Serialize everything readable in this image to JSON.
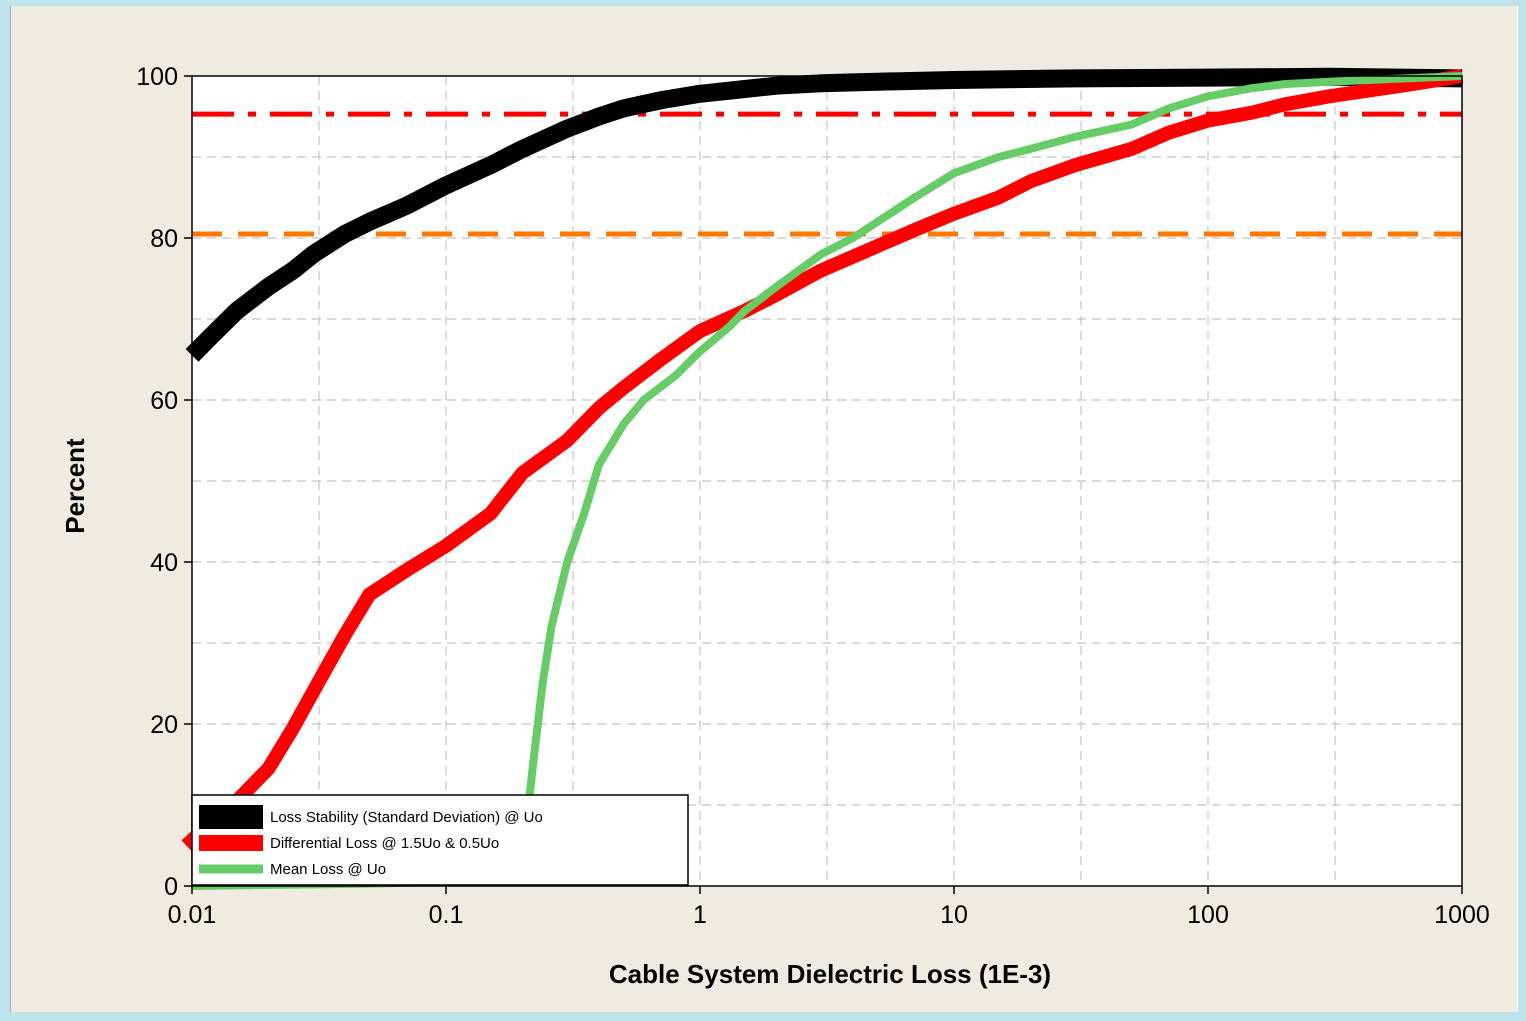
{
  "chart_data": {
    "type": "line",
    "title": "",
    "xlabel": "Cable System Dielectric Loss (1E-3)",
    "ylabel": "Percent",
    "xscale": "log",
    "xlim": [
      0.01,
      1000
    ],
    "ylim": [
      0,
      100
    ],
    "x_ticks": [
      0.01,
      0.1,
      1,
      10,
      100,
      1000
    ],
    "x_tick_labels": [
      "0.01",
      "0.1",
      "1",
      "10",
      "100",
      "1000"
    ],
    "y_ticks": [
      0,
      20,
      40,
      60,
      80,
      100
    ],
    "y_tick_labels": [
      "0",
      "20",
      "40",
      "60",
      "80",
      "100"
    ],
    "grid": true,
    "legend_position": "bottom-left",
    "series": [
      {
        "name": "Loss Stability (Standard Deviation) @ Uo",
        "color": "#000000",
        "x": [
          0.01,
          0.012,
          0.015,
          0.02,
          0.025,
          0.03,
          0.04,
          0.05,
          0.07,
          0.1,
          0.15,
          0.2,
          0.3,
          0.4,
          0.5,
          0.7,
          1,
          1.5,
          2,
          3,
          5,
          10,
          30,
          100,
          300,
          1000
        ],
        "y": [
          65.5,
          68,
          71,
          74,
          76,
          78,
          80.5,
          82,
          84,
          86.5,
          89,
          91,
          93.5,
          95,
          96,
          97,
          97.8,
          98.4,
          98.8,
          99.1,
          99.3,
          99.5,
          99.7,
          99.8,
          99.9,
          99.7
        ]
      },
      {
        "name": "Differential Loss @ 1.5Uo & 0.5Uo",
        "color": "#ff0000",
        "x": [
          0.0095,
          0.012,
          0.015,
          0.02,
          0.025,
          0.03,
          0.04,
          0.05,
          0.07,
          0.1,
          0.15,
          0.2,
          0.3,
          0.4,
          0.5,
          0.7,
          1,
          1.5,
          2,
          3,
          5,
          7,
          10,
          15,
          20,
          30,
          50,
          70,
          100,
          150,
          200,
          300,
          500,
          700,
          1000
        ],
        "y": [
          5,
          8,
          10.5,
          14.5,
          19.5,
          24,
          31,
          36,
          39,
          42,
          46,
          51,
          55,
          59,
          61.5,
          65,
          68.5,
          71,
          73,
          76,
          79,
          81,
          83,
          85,
          87,
          89,
          91,
          93,
          94.5,
          95.5,
          96.5,
          97.5,
          98.5,
          99.2,
          100
        ]
      },
      {
        "name": "Mean Loss @ Uo",
        "color": "#66cc66",
        "x": [
          0.01,
          0.05,
          0.1,
          0.12,
          0.15,
          0.18,
          0.21,
          0.22,
          0.24,
          0.26,
          0.3,
          0.35,
          0.4,
          0.5,
          0.6,
          0.8,
          1,
          1.3,
          1.5,
          2,
          3,
          4,
          5,
          7,
          10,
          15,
          20,
          30,
          50,
          70,
          100,
          150,
          200,
          300,
          500,
          1000
        ],
        "y": [
          0,
          0.3,
          0.5,
          1,
          2.5,
          5,
          9,
          15,
          25,
          32,
          40,
          46,
          52,
          57,
          60,
          63,
          66,
          69,
          71,
          74,
          78,
          80,
          82,
          85,
          88,
          90,
          91,
          92.5,
          94,
          96,
          97.5,
          98.5,
          99,
          99.3,
          99.6,
          100
        ]
      }
    ],
    "reference_lines": [
      {
        "y": 95.3,
        "color": "#ff0000",
        "style": "dash-dot"
      },
      {
        "y": 80.5,
        "color": "#ff7700",
        "style": "dashed"
      }
    ]
  }
}
